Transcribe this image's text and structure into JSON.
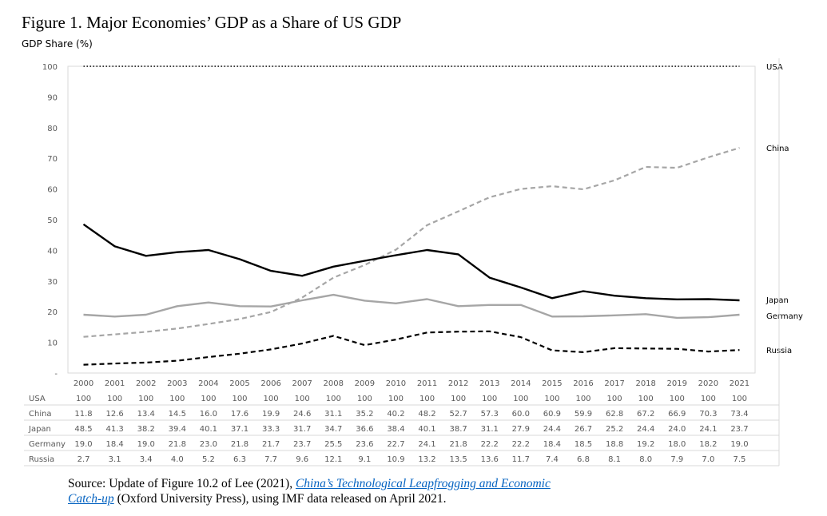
{
  "figure": {
    "title": "Figure 1. Major Economies’ GDP as a Share of US GDP",
    "y_axis_title": "GDP Share (%)"
  },
  "chart_data": {
    "type": "line",
    "title": "Figure 1. Major Economies’ GDP as a Share of US GDP",
    "xlabel": "",
    "ylabel": "GDP Share (%)",
    "ylim": [
      0,
      100
    ],
    "yticks": [
      "-",
      "10",
      "20",
      "30",
      "40",
      "50",
      "60",
      "70",
      "80",
      "90",
      "100"
    ],
    "grid": false,
    "legend": "right-end labels",
    "x": [
      "2000",
      "2001",
      "2002",
      "2003",
      "2004",
      "2005",
      "2006",
      "2007",
      "2008",
      "2009",
      "2010",
      "2011",
      "2012",
      "2013",
      "2014",
      "2015",
      "2016",
      "2017",
      "2018",
      "2019",
      "2020",
      "2021"
    ],
    "series": [
      {
        "name": "USA",
        "style": "dotted",
        "color": "#000000",
        "values": [
          100,
          100,
          100,
          100,
          100,
          100,
          100,
          100,
          100,
          100,
          100,
          100,
          100,
          100,
          100,
          100,
          100,
          100,
          100,
          100,
          100,
          100
        ],
        "table_values": [
          "100",
          "100",
          "100",
          "100",
          "100",
          "100",
          "100",
          "100",
          "100",
          "100",
          "100",
          "100",
          "100",
          "100",
          "100",
          "100",
          "100",
          "100",
          "100",
          "100",
          "100",
          "100"
        ]
      },
      {
        "name": "China",
        "style": "dashed",
        "color": "#a6a6a6",
        "values": [
          11.8,
          12.6,
          13.4,
          14.5,
          16.0,
          17.6,
          19.9,
          24.6,
          31.1,
          35.2,
          40.2,
          48.2,
          52.7,
          57.3,
          60.0,
          60.9,
          59.9,
          62.8,
          67.2,
          66.9,
          70.3,
          73.4
        ],
        "table_values": [
          "11.8",
          "12.6",
          "13.4",
          "14.5",
          "16.0",
          "17.6",
          "19.9",
          "24.6",
          "31.1",
          "35.2",
          "40.2",
          "48.2",
          "52.7",
          "57.3",
          "60.0",
          "60.9",
          "59.9",
          "62.8",
          "67.2",
          "66.9",
          "70.3",
          "73.4"
        ]
      },
      {
        "name": "Japan",
        "style": "solid",
        "color": "#000000",
        "values": [
          48.5,
          41.3,
          38.2,
          39.4,
          40.1,
          37.1,
          33.3,
          31.7,
          34.7,
          36.6,
          38.4,
          40.1,
          38.7,
          31.1,
          27.9,
          24.4,
          26.7,
          25.2,
          24.4,
          24.0,
          24.1,
          23.7
        ],
        "table_values": [
          "48.5",
          "41.3",
          "38.2",
          "39.4",
          "40.1",
          "37.1",
          "33.3",
          "31.7",
          "34.7",
          "36.6",
          "38.4",
          "40.1",
          "38.7",
          "31.1",
          "27.9",
          "24.4",
          "26.7",
          "25.2",
          "24.4",
          "24.0",
          "24.1",
          "23.7"
        ]
      },
      {
        "name": "Germany",
        "style": "solid",
        "color": "#a6a6a6",
        "values": [
          19.0,
          18.4,
          19.0,
          21.8,
          23.0,
          21.8,
          21.7,
          23.7,
          25.5,
          23.6,
          22.7,
          24.1,
          21.8,
          22.2,
          22.2,
          18.4,
          18.5,
          18.8,
          19.2,
          18.0,
          18.2,
          19.0
        ],
        "table_values": [
          "19.0",
          "18.4",
          "19.0",
          "21.8",
          "23.0",
          "21.8",
          "21.7",
          "23.7",
          "25.5",
          "23.6",
          "22.7",
          "24.1",
          "21.8",
          "22.2",
          "22.2",
          "18.4",
          "18.5",
          "18.8",
          "19.2",
          "18.0",
          "18.2",
          "19.0"
        ]
      },
      {
        "name": "Russia",
        "style": "dashed",
        "color": "#000000",
        "values": [
          2.7,
          3.1,
          3.4,
          4.0,
          5.2,
          6.3,
          7.7,
          9.6,
          12.1,
          9.1,
          10.9,
          13.2,
          13.5,
          13.6,
          11.7,
          7.4,
          6.8,
          8.1,
          8.0,
          7.9,
          7.0,
          7.5
        ],
        "table_values": [
          "2.7",
          "3.1",
          "3.4",
          "4.0",
          "5.2",
          "6.3",
          "7.7",
          "9.6",
          "12.1",
          "9.1",
          "10.9",
          "13.2",
          "13.5",
          "13.6",
          "11.7",
          "7.4",
          "6.8",
          "8.1",
          "8.0",
          "7.9",
          "7.0",
          "7.5"
        ]
      }
    ]
  },
  "source": {
    "prefix": "Source: Update of Figure 10.2 of Lee (2021), ",
    "link_text_1": "China’s Technological Leapfrogging and Economic",
    "link_text_2": "Catch-up",
    "suffix": " (Oxford University Press), using IMF data released on April 2021."
  }
}
